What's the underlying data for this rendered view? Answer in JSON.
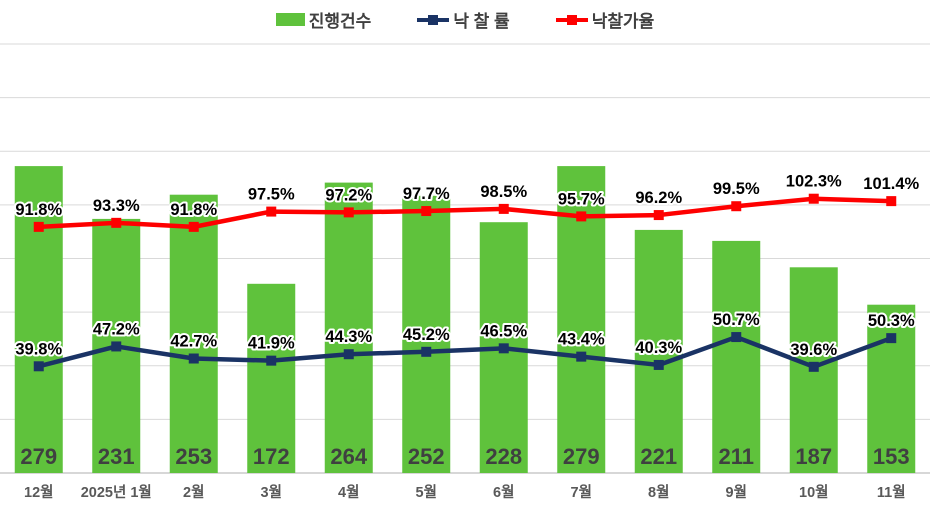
{
  "legend": [
    {
      "label": "진행건수",
      "type": "bar",
      "color": "#5FC23C"
    },
    {
      "label": "낙 찰 률",
      "type": "line",
      "color": "#1A3365"
    },
    {
      "label": "낙찰가율",
      "type": "line",
      "color": "#FE0000"
    }
  ],
  "chart_data": {
    "type": "combo-bar-line",
    "title": "",
    "categories": [
      "12월",
      "2025년 1월",
      "2월",
      "3월",
      "4월",
      "5월",
      "6월",
      "7월",
      "8월",
      "9월",
      "10월",
      "11월"
    ],
    "series": [
      {
        "name": "진행건수",
        "type": "bar",
        "axis": "count",
        "color": "#5FC23C",
        "values": [
          279,
          231,
          253,
          172,
          264,
          252,
          228,
          279,
          221,
          211,
          187,
          153
        ],
        "label_format": "plain"
      },
      {
        "name": "낙 찰 률",
        "type": "line",
        "axis": "percent",
        "color": "#1A3365",
        "values": [
          39.8,
          47.2,
          42.7,
          41.9,
          44.3,
          45.2,
          46.5,
          43.4,
          40.3,
          50.7,
          39.6,
          50.3
        ],
        "label_format": "percent1"
      },
      {
        "name": "낙찰가율",
        "type": "line",
        "axis": "percent",
        "color": "#FE0000",
        "values": [
          91.8,
          93.3,
          91.8,
          97.5,
          97.2,
          97.7,
          98.5,
          95.7,
          96.2,
          99.5,
          102.3,
          101.4
        ],
        "label_format": "percent1"
      }
    ],
    "percent_axis": {
      "min": 0,
      "max": 160,
      "step": 20
    },
    "count_axis": {
      "min": 0,
      "max": 390
    },
    "grid": true,
    "legend_position": "top",
    "colors": {
      "grid_line": "#D9D9D9",
      "axis_line": "#BFBFBF",
      "bar_value_label": "#3F4040",
      "x_axis_label": "#595959",
      "data_label_fill": "#000000",
      "data_label_halo": "#FFFFFF",
      "background": "#FFFFFF"
    }
  }
}
